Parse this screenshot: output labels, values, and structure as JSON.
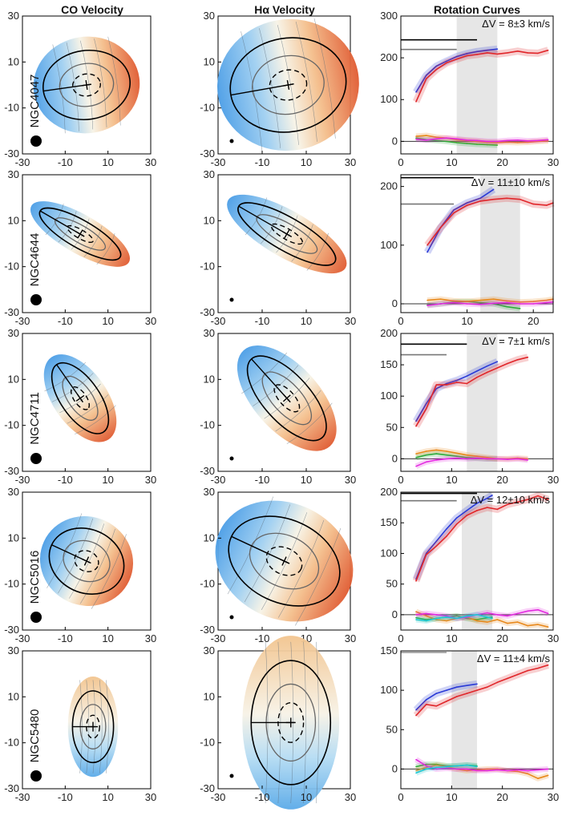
{
  "figure": {
    "headers": {
      "co": "CO Velocity",
      "ha": "Hα  Velocity",
      "rc": "Rotation Curves"
    }
  },
  "colors": {
    "blue": "#2a3ad6",
    "red": "#e0262a",
    "green": "#2faa3a",
    "orange": "#e8891c",
    "magenta": "#e22adf",
    "cyan": "#1cc9d6",
    "band": "#e6e6e6",
    "approach": "#6fb6ea",
    "recede": "#e0693c"
  },
  "map_ticks": [
    "-30",
    "-10",
    "10",
    "30"
  ],
  "chart_data": [
    {
      "type": "line",
      "galaxy": "NGC4047",
      "delta_v": "ΔV = 8±3 km/s",
      "xlim": [
        0,
        30
      ],
      "ylim": [
        -30,
        300
      ],
      "xticks": [
        "0",
        "10",
        "20",
        "30"
      ],
      "yticks": [
        "0",
        "100",
        "200",
        "300"
      ],
      "band": [
        11,
        19
      ],
      "series": [
        {
          "name": "CO",
          "color": "#2a3ad6",
          "x": [
            3,
            5,
            7,
            9,
            11,
            13,
            15,
            17,
            19
          ],
          "y": [
            118,
            158,
            180,
            192,
            203,
            210,
            215,
            218,
            221
          ]
        },
        {
          "name": "Halpha",
          "color": "#e0262a",
          "x": [
            3,
            5,
            7,
            9,
            11,
            13,
            15,
            17,
            19,
            21,
            23,
            25,
            27,
            29
          ],
          "y": [
            95,
            150,
            172,
            188,
            197,
            205,
            208,
            212,
            209,
            212,
            216,
            212,
            211,
            218
          ]
        },
        {
          "name": "res1",
          "color": "#2faa3a",
          "x": [
            3,
            5,
            7,
            9,
            11,
            13,
            15,
            17,
            19
          ],
          "y": [
            8,
            4,
            2,
            0,
            -3,
            -5,
            -7,
            -8,
            -9
          ]
        },
        {
          "name": "res2",
          "color": "#e8891c",
          "x": [
            3,
            5,
            7,
            9,
            11,
            13,
            15,
            17,
            19,
            21,
            23,
            25,
            27,
            29
          ],
          "y": [
            12,
            14,
            10,
            8,
            4,
            2,
            0,
            -2,
            -3,
            -2,
            -3,
            -2,
            0,
            1
          ]
        },
        {
          "name": "res3",
          "color": "#e22adf",
          "x": [
            3,
            5,
            7,
            9,
            11,
            13,
            15,
            17,
            19,
            21,
            23,
            25,
            27,
            29
          ],
          "y": [
            5,
            3,
            6,
            8,
            6,
            3,
            2,
            0,
            0,
            2,
            3,
            1,
            2,
            4
          ]
        }
      ],
      "hlines": [
        {
          "y": 243,
          "x1": 0,
          "x2": 15,
          "color": "#000"
        },
        {
          "y": 220,
          "x1": 0,
          "x2": 11,
          "color": "#777"
        }
      ]
    },
    {
      "type": "line",
      "galaxy": "NGC4644",
      "delta_v": "ΔV = 11±10 km/s",
      "xlim": [
        0,
        23
      ],
      "ylim": [
        -15,
        220
      ],
      "xticks": [
        "0",
        "10",
        "20"
      ],
      "yticks": [
        "0",
        "100",
        "200"
      ],
      "band": [
        12,
        18
      ],
      "series": [
        {
          "name": "CO",
          "color": "#2a3ad6",
          "x": [
            4,
            6,
            8,
            10,
            12,
            14
          ],
          "y": [
            88,
            130,
            160,
            172,
            180,
            195
          ]
        },
        {
          "name": "Halpha",
          "color": "#e0262a",
          "x": [
            4,
            6,
            8,
            10,
            12,
            14,
            16,
            18,
            20,
            22,
            23
          ],
          "y": [
            100,
            130,
            155,
            168,
            175,
            178,
            180,
            178,
            170,
            168,
            172
          ]
        },
        {
          "name": "res1",
          "color": "#2faa3a",
          "x": [
            4,
            6,
            8,
            10,
            12,
            14,
            16,
            18
          ],
          "y": [
            -2,
            0,
            3,
            4,
            2,
            0,
            -5,
            -8
          ]
        },
        {
          "name": "res2",
          "color": "#e8891c",
          "x": [
            4,
            6,
            8,
            10,
            12,
            14,
            16,
            18,
            20,
            22,
            23
          ],
          "y": [
            6,
            8,
            5,
            4,
            6,
            8,
            5,
            3,
            4,
            6,
            8
          ]
        },
        {
          "name": "res3",
          "color": "#e22adf",
          "x": [
            4,
            6,
            8,
            10,
            12,
            14,
            16,
            18,
            20,
            22,
            23
          ],
          "y": [
            -3,
            0,
            2,
            0,
            -1,
            1,
            2,
            0,
            0,
            2,
            3
          ]
        }
      ],
      "hlines": [
        {
          "y": 215,
          "x1": 0,
          "x2": 11,
          "color": "#000"
        },
        {
          "y": 170,
          "x1": 0,
          "x2": 8,
          "color": "#777"
        }
      ]
    },
    {
      "type": "line",
      "galaxy": "NGC4711",
      "delta_v": "ΔV = 7±1 km/s",
      "xlim": [
        0,
        30
      ],
      "ylim": [
        -20,
        200
      ],
      "xticks": [
        "0",
        "10",
        "20",
        "30"
      ],
      "yticks": [
        "0",
        "50",
        "100",
        "150",
        "200"
      ],
      "band": [
        13,
        19
      ],
      "series": [
        {
          "name": "CO",
          "color": "#2a3ad6",
          "x": [
            3,
            5,
            7,
            9,
            11,
            13,
            15,
            17,
            19
          ],
          "y": [
            60,
            88,
            112,
            120,
            125,
            132,
            140,
            148,
            155
          ]
        },
        {
          "name": "Halpha",
          "color": "#e0262a",
          "x": [
            3,
            5,
            7,
            9,
            11,
            13,
            15,
            17,
            19,
            21,
            23,
            25
          ],
          "y": [
            52,
            80,
            118,
            118,
            122,
            120,
            130,
            138,
            145,
            152,
            158,
            162
          ]
        },
        {
          "name": "res1",
          "color": "#2faa3a",
          "x": [
            3,
            5,
            7,
            9,
            11,
            13,
            15,
            17,
            19
          ],
          "y": [
            2,
            6,
            8,
            6,
            4,
            2,
            1,
            0,
            0
          ]
        },
        {
          "name": "res2",
          "color": "#e8891c",
          "x": [
            3,
            5,
            7,
            9,
            11,
            13,
            15,
            17,
            19,
            21,
            23,
            25
          ],
          "y": [
            8,
            12,
            14,
            12,
            9,
            6,
            4,
            2,
            0,
            0,
            1,
            0
          ]
        },
        {
          "name": "res3",
          "color": "#e22adf",
          "x": [
            3,
            5,
            7,
            9,
            11,
            13,
            15,
            17,
            19,
            21,
            23,
            25
          ],
          "y": [
            -12,
            -5,
            -2,
            0,
            1,
            0,
            1,
            0,
            0,
            -1,
            0,
            -2
          ]
        }
      ],
      "hlines": [
        {
          "y": 183,
          "x1": 0,
          "x2": 13,
          "color": "#000"
        },
        {
          "y": 166,
          "x1": 0,
          "x2": 9,
          "color": "#777"
        }
      ]
    },
    {
      "type": "line",
      "galaxy": "NGC5016",
      "delta_v": "ΔV = 12±10 km/s",
      "xlim": [
        0,
        30
      ],
      "ylim": [
        -25,
        200
      ],
      "xticks": [
        "0",
        "10",
        "20",
        "30"
      ],
      "yticks": [
        "0",
        "50",
        "100",
        "150",
        "200"
      ],
      "band": [
        12,
        18
      ],
      "series": [
        {
          "name": "CO",
          "color": "#2a3ad6",
          "x": [
            3,
            5,
            7,
            9,
            11,
            13,
            15,
            17,
            18
          ],
          "y": [
            58,
            100,
            120,
            140,
            158,
            170,
            182,
            190,
            195
          ]
        },
        {
          "name": "Halpha",
          "color": "#e0262a",
          "x": [
            3,
            5,
            7,
            9,
            11,
            13,
            15,
            17,
            19,
            21,
            23,
            25,
            27,
            29
          ],
          "y": [
            55,
            98,
            112,
            128,
            148,
            162,
            170,
            175,
            172,
            180,
            184,
            188,
            194,
            188
          ]
        },
        {
          "name": "res1",
          "color": "#2faa3a",
          "x": [
            3,
            5,
            7,
            9,
            11,
            13,
            15,
            17,
            18
          ],
          "y": [
            -5,
            -8,
            -6,
            -4,
            -2,
            -6,
            -8,
            -5,
            -4
          ]
        },
        {
          "name": "res2",
          "color": "#e8891c",
          "x": [
            3,
            5,
            7,
            9,
            11,
            13,
            15,
            17,
            19,
            21,
            23,
            25,
            27,
            29
          ],
          "y": [
            5,
            -2,
            -8,
            -10,
            -6,
            -4,
            -10,
            -12,
            -8,
            -14,
            -12,
            -18,
            -16,
            -20
          ]
        },
        {
          "name": "res3",
          "color": "#e22adf",
          "x": [
            3,
            5,
            7,
            9,
            11,
            13,
            15,
            17,
            19,
            21,
            23,
            25,
            27,
            29
          ],
          "y": [
            0,
            2,
            0,
            -2,
            -6,
            -4,
            0,
            3,
            0,
            -2,
            2,
            6,
            8,
            2
          ]
        },
        {
          "name": "res4",
          "color": "#1cc9d6",
          "x": [
            3,
            5,
            7,
            9,
            11,
            13,
            15,
            17,
            18
          ],
          "y": [
            -8,
            -10,
            -6,
            -4,
            -6,
            -2,
            0,
            -4,
            -6
          ]
        }
      ],
      "hlines": [
        {
          "y": 198,
          "x1": 0,
          "x2": 15,
          "color": "#000"
        },
        {
          "y": 186,
          "x1": 0,
          "x2": 11,
          "color": "#777"
        }
      ]
    },
    {
      "type": "line",
      "galaxy": "NGC5480",
      "delta_v": "ΔV = 11±4 km/s",
      "xlim": [
        0,
        30
      ],
      "ylim": [
        -25,
        150
      ],
      "xticks": [
        "0",
        "10",
        "20",
        "30"
      ],
      "yticks": [
        "0",
        "50",
        "100",
        "150"
      ],
      "band": [
        10,
        15
      ],
      "series": [
        {
          "name": "CO",
          "color": "#2a3ad6",
          "x": [
            3,
            5,
            7,
            9,
            11,
            13,
            15
          ],
          "y": [
            75,
            88,
            96,
            100,
            104,
            106,
            108
          ]
        },
        {
          "name": "Halpha",
          "color": "#e0262a",
          "x": [
            3,
            5,
            7,
            9,
            11,
            13,
            15,
            17,
            19,
            21,
            23,
            25,
            27,
            29
          ],
          "y": [
            68,
            82,
            80,
            86,
            92,
            96,
            100,
            104,
            110,
            115,
            120,
            125,
            128,
            132
          ]
        },
        {
          "name": "res1",
          "color": "#2faa3a",
          "x": [
            3,
            5,
            7,
            9,
            11,
            13,
            15
          ],
          "y": [
            3,
            6,
            6,
            4,
            4,
            5,
            4
          ]
        },
        {
          "name": "res2",
          "color": "#e8891c",
          "x": [
            3,
            5,
            7,
            9,
            11,
            13,
            15,
            17,
            19,
            21,
            23,
            25,
            27,
            29
          ],
          "y": [
            -2,
            2,
            5,
            3,
            0,
            -2,
            -1,
            0,
            0,
            -2,
            -3,
            -6,
            -12,
            -8
          ]
        },
        {
          "name": "res3",
          "color": "#e22adf",
          "x": [
            3,
            5,
            7,
            9,
            11,
            13,
            15,
            17,
            19,
            21,
            23,
            25,
            27,
            29
          ],
          "y": [
            12,
            4,
            0,
            1,
            0,
            0,
            -2,
            -2,
            -1,
            -2,
            -1,
            -2,
            -1,
            0
          ]
        },
        {
          "name": "res4",
          "color": "#1cc9d6",
          "x": [
            3,
            5,
            7,
            9,
            11,
            13,
            15
          ],
          "y": [
            -5,
            0,
            2,
            3,
            4,
            5,
            3
          ]
        }
      ],
      "hlines": [
        {
          "y": 148,
          "x1": 0,
          "x2": 9,
          "color": "#999"
        }
      ]
    }
  ]
}
